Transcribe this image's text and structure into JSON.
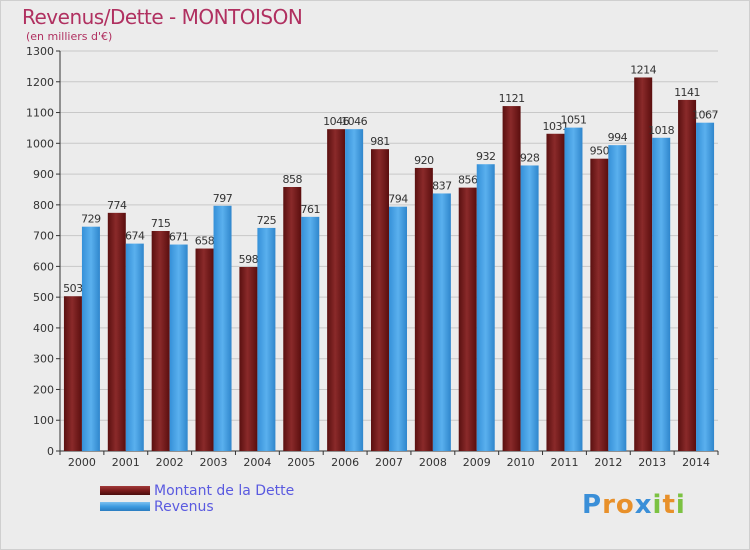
{
  "title": "Revenus/Dette - MONTOISON",
  "subtitle": "(en milliers d'€)",
  "logo": {
    "text": "Proxiti",
    "letters": [
      {
        "ch": "P",
        "color": "#3a8fd8"
      },
      {
        "ch": "r",
        "color": "#e8902a"
      },
      {
        "ch": "o",
        "color": "#e8902a"
      },
      {
        "ch": "x",
        "color": "#3a8fd8"
      },
      {
        "ch": "i",
        "color": "#7cc242"
      },
      {
        "ch": "t",
        "color": "#e8902a"
      },
      {
        "ch": "i",
        "color": "#7cc242"
      }
    ]
  },
  "colors": {
    "dette": "#7a1c1c",
    "revenus": "#3d9be0",
    "grid": "#c8c8c8",
    "axis": "#333333"
  },
  "chart_data": {
    "type": "bar",
    "title": "Revenus/Dette - MONTOISON",
    "subtitle": "(en milliers d'€)",
    "categories": [
      "2000",
      "2001",
      "2002",
      "2003",
      "2004",
      "2005",
      "2006",
      "2007",
      "2008",
      "2009",
      "2010",
      "2011",
      "2012",
      "2013",
      "2014"
    ],
    "series": [
      {
        "name": "Montant de la Dette",
        "values": [
          503,
          774,
          715,
          658,
          598,
          858,
          1046,
          981,
          920,
          856,
          1121,
          1031,
          950,
          1214,
          1141
        ]
      },
      {
        "name": "Revenus",
        "values": [
          729,
          674,
          671,
          797,
          725,
          761,
          1046,
          794,
          837,
          932,
          928,
          1051,
          994,
          1018,
          1067
        ]
      }
    ],
    "ylim": [
      0,
      1300
    ],
    "yticks": [
      0,
      100,
      200,
      300,
      400,
      500,
      600,
      700,
      800,
      900,
      1000,
      1100,
      1200,
      1300
    ],
    "grid": true,
    "legend": "bottom-left"
  }
}
